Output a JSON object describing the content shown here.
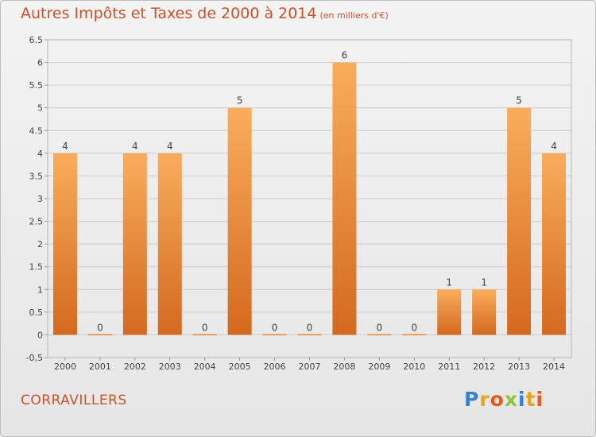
{
  "title": "Autres Impôts et Taxes de 2000 à 2014",
  "unit": "(en milliers d'€)",
  "town": "CORRAVILLERS",
  "logo": "Proxiti",
  "colors": {
    "bar_light": "#f9ad5c",
    "bar_dark": "#d4691f",
    "title": "#c8522a",
    "grid": "#cccccc"
  },
  "chart_data": {
    "type": "bar",
    "title": "Autres Impôts et Taxes de 2000 à 2014",
    "xlabel": "",
    "ylabel": "",
    "ylim": [
      -0.5,
      6.5
    ],
    "yticks": [
      "-0,5",
      "0",
      "0.5",
      "1",
      "1.5",
      "2",
      "2.5",
      "3",
      "3.5",
      "4",
      "4.5",
      "5",
      "5.5",
      "6",
      "6.5"
    ],
    "grid": true,
    "categories": [
      "2000",
      "2001",
      "2002",
      "2003",
      "2004",
      "2005",
      "2006",
      "2007",
      "2008",
      "2009",
      "2010",
      "2011",
      "2012",
      "2013",
      "2014"
    ],
    "values": [
      4,
      0,
      4,
      4,
      0,
      5,
      0,
      0,
      6,
      0,
      0,
      1,
      1,
      5,
      4
    ],
    "data_labels": [
      "4",
      "0",
      "4",
      "4",
      "0",
      "5",
      "0",
      "0",
      "6",
      "0",
      "0",
      "1",
      "1",
      "5",
      "4"
    ]
  }
}
